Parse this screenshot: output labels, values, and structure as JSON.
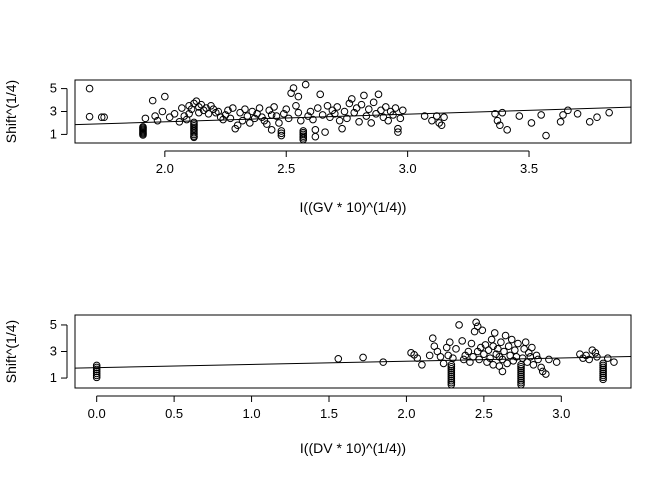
{
  "chart_data": [
    {
      "type": "scatter",
      "title": "",
      "xlabel": "I((GV * 10)^(1/4))",
      "ylabel": "Shift^(1/4)",
      "xlim": [
        1.63,
        3.92
      ],
      "ylim": [
        0.25,
        5.75
      ],
      "xticks": [
        2.0,
        2.5,
        3.0,
        3.5
      ],
      "xtick_labels": [
        "2.0",
        "2.5",
        "3.0",
        "3.5"
      ],
      "yticks": [
        1,
        3,
        5
      ],
      "ytick_labels": [
        "1",
        "3",
        "5"
      ],
      "grid": false,
      "legend": "none",
      "fit_line": {
        "x": [
          1.63,
          3.92
        ],
        "y": [
          1.85,
          3.38
        ]
      },
      "points": [
        [
          1.69,
          5.0
        ],
        [
          1.69,
          2.55
        ],
        [
          1.74,
          2.5
        ],
        [
          1.75,
          2.5
        ],
        [
          1.91,
          0.95
        ],
        [
          1.91,
          1.05
        ],
        [
          1.91,
          1.15
        ],
        [
          1.91,
          1.25
        ],
        [
          1.91,
          1.35
        ],
        [
          1.91,
          1.45
        ],
        [
          1.91,
          1.55
        ],
        [
          1.91,
          1.65
        ],
        [
          1.92,
          2.4
        ],
        [
          1.95,
          3.95
        ],
        [
          1.96,
          2.6
        ],
        [
          1.97,
          2.2
        ],
        [
          1.99,
          3.0
        ],
        [
          2.0,
          4.3
        ],
        [
          2.02,
          2.5
        ],
        [
          2.04,
          2.8
        ],
        [
          2.06,
          2.1
        ],
        [
          2.07,
          3.3
        ],
        [
          2.08,
          2.6
        ],
        [
          2.09,
          2.3
        ],
        [
          2.1,
          3.5
        ],
        [
          2.1,
          2.8
        ],
        [
          2.11,
          3.2
        ],
        [
          2.12,
          3.7
        ],
        [
          2.12,
          0.75
        ],
        [
          2.12,
          0.85
        ],
        [
          2.12,
          1.0
        ],
        [
          2.12,
          1.15
        ],
        [
          2.12,
          1.3
        ],
        [
          2.12,
          1.45
        ],
        [
          2.12,
          1.6
        ],
        [
          2.12,
          1.75
        ],
        [
          2.12,
          1.9
        ],
        [
          2.12,
          2.05
        ],
        [
          2.13,
          3.9
        ],
        [
          2.14,
          3.4
        ],
        [
          2.14,
          2.9
        ],
        [
          2.15,
          3.6
        ],
        [
          2.16,
          3.1
        ],
        [
          2.17,
          3.3
        ],
        [
          2.18,
          2.8
        ],
        [
          2.19,
          3.5
        ],
        [
          2.2,
          3.2
        ],
        [
          2.21,
          2.9
        ],
        [
          2.22,
          3.0
        ],
        [
          2.23,
          2.5
        ],
        [
          2.24,
          2.3
        ],
        [
          2.25,
          2.7
        ],
        [
          2.26,
          3.1
        ],
        [
          2.27,
          2.4
        ],
        [
          2.28,
          3.3
        ],
        [
          2.29,
          1.5
        ],
        [
          2.3,
          1.8
        ],
        [
          2.31,
          2.9
        ],
        [
          2.32,
          2.2
        ],
        [
          2.33,
          3.2
        ],
        [
          2.34,
          2.6
        ],
        [
          2.35,
          2.0
        ],
        [
          2.36,
          3.0
        ],
        [
          2.37,
          2.4
        ],
        [
          2.38,
          2.8
        ],
        [
          2.39,
          3.3
        ],
        [
          2.4,
          2.5
        ],
        [
          2.41,
          2.2
        ],
        [
          2.42,
          1.9
        ],
        [
          2.43,
          3.1
        ],
        [
          2.44,
          2.7
        ],
        [
          2.44,
          1.4
        ],
        [
          2.45,
          3.4
        ],
        [
          2.46,
          2.6
        ],
        [
          2.47,
          2.0
        ],
        [
          2.48,
          0.9
        ],
        [
          2.48,
          1.1
        ],
        [
          2.48,
          1.3
        ],
        [
          2.49,
          2.8
        ],
        [
          2.5,
          3.2
        ],
        [
          2.51,
          2.4
        ],
        [
          2.52,
          4.6
        ],
        [
          2.53,
          5.05
        ],
        [
          2.54,
          3.5
        ],
        [
          2.55,
          2.9
        ],
        [
          2.55,
          4.3
        ],
        [
          2.56,
          2.2
        ],
        [
          2.57,
          0.55
        ],
        [
          2.57,
          0.7
        ],
        [
          2.57,
          0.85
        ],
        [
          2.57,
          1.0
        ],
        [
          2.57,
          1.15
        ],
        [
          2.57,
          1.3
        ],
        [
          2.58,
          5.35
        ],
        [
          2.59,
          2.6
        ],
        [
          2.6,
          3.0
        ],
        [
          2.61,
          2.3
        ],
        [
          2.62,
          0.8
        ],
        [
          2.62,
          1.4
        ],
        [
          2.63,
          3.3
        ],
        [
          2.64,
          4.5
        ],
        [
          2.65,
          2.7
        ],
        [
          2.66,
          1.2
        ],
        [
          2.67,
          3.5
        ],
        [
          2.68,
          2.5
        ],
        [
          2.69,
          3.1
        ],
        [
          2.7,
          2.8
        ],
        [
          2.71,
          3.4
        ],
        [
          2.72,
          2.2
        ],
        [
          2.73,
          1.5
        ],
        [
          2.74,
          3.0
        ],
        [
          2.75,
          2.4
        ],
        [
          2.76,
          3.7
        ],
        [
          2.77,
          4.1
        ],
        [
          2.78,
          2.9
        ],
        [
          2.79,
          3.3
        ],
        [
          2.8,
          2.1
        ],
        [
          2.81,
          3.6
        ],
        [
          2.82,
          4.4
        ],
        [
          2.83,
          2.6
        ],
        [
          2.84,
          3.2
        ],
        [
          2.85,
          2.0
        ],
        [
          2.86,
          3.8
        ],
        [
          2.87,
          2.8
        ],
        [
          2.88,
          4.5
        ],
        [
          2.89,
          3.1
        ],
        [
          2.9,
          2.5
        ],
        [
          2.91,
          3.4
        ],
        [
          2.92,
          2.2
        ],
        [
          2.93,
          3.0
        ],
        [
          2.94,
          2.7
        ],
        [
          2.95,
          3.3
        ],
        [
          2.96,
          1.2
        ],
        [
          2.96,
          1.5
        ],
        [
          2.97,
          2.4
        ],
        [
          2.98,
          3.1
        ],
        [
          3.07,
          2.6
        ],
        [
          3.1,
          2.2
        ],
        [
          3.12,
          2.6
        ],
        [
          3.13,
          2.0
        ],
        [
          3.14,
          1.8
        ],
        [
          3.15,
          2.5
        ],
        [
          3.36,
          2.8
        ],
        [
          3.37,
          2.2
        ],
        [
          3.38,
          1.8
        ],
        [
          3.39,
          2.9
        ],
        [
          3.41,
          1.4
        ],
        [
          3.46,
          2.6
        ],
        [
          3.51,
          2.0
        ],
        [
          3.55,
          2.7
        ],
        [
          3.57,
          0.9
        ],
        [
          3.63,
          2.1
        ],
        [
          3.64,
          2.7
        ],
        [
          3.66,
          3.1
        ],
        [
          3.7,
          2.8
        ],
        [
          3.75,
          2.1
        ],
        [
          3.78,
          2.5
        ],
        [
          3.83,
          2.9
        ]
      ]
    },
    {
      "type": "scatter",
      "title": "",
      "xlabel": "I((DV * 10)^(1/4))",
      "ylabel": "Shift^(1/4)",
      "xlim": [
        -0.14,
        3.45
      ],
      "ylim": [
        0.25,
        5.75
      ],
      "xticks": [
        0.0,
        0.5,
        1.0,
        1.5,
        2.0,
        2.5,
        3.0
      ],
      "xtick_labels": [
        "0.0",
        "0.5",
        "1.0",
        "1.5",
        "2.0",
        "2.5",
        "3.0"
      ],
      "yticks": [
        1,
        3,
        5
      ],
      "ytick_labels": [
        "1",
        "3",
        "5"
      ],
      "grid": false,
      "legend": "none",
      "fit_line": {
        "x": [
          -0.14,
          3.45
        ],
        "y": [
          1.75,
          2.62
        ]
      },
      "points": [
        [
          0.0,
          1.05
        ],
        [
          0.0,
          1.2
        ],
        [
          0.0,
          1.35
        ],
        [
          0.0,
          1.5
        ],
        [
          0.0,
          1.65
        ],
        [
          0.0,
          1.8
        ],
        [
          0.0,
          1.95
        ],
        [
          1.56,
          2.45
        ],
        [
          1.72,
          2.55
        ],
        [
          1.85,
          2.2
        ],
        [
          2.03,
          2.9
        ],
        [
          2.05,
          2.75
        ],
        [
          2.07,
          2.5
        ],
        [
          2.1,
          2.0
        ],
        [
          2.15,
          2.7
        ],
        [
          2.17,
          4.0
        ],
        [
          2.18,
          3.4
        ],
        [
          2.2,
          3.0
        ],
        [
          2.22,
          2.6
        ],
        [
          2.24,
          2.1
        ],
        [
          2.26,
          3.3
        ],
        [
          2.27,
          2.7
        ],
        [
          2.28,
          3.7
        ],
        [
          2.29,
          0.5
        ],
        [
          2.29,
          0.65
        ],
        [
          2.29,
          0.8
        ],
        [
          2.29,
          0.95
        ],
        [
          2.29,
          1.1
        ],
        [
          2.29,
          1.25
        ],
        [
          2.29,
          1.4
        ],
        [
          2.29,
          1.55
        ],
        [
          2.29,
          1.7
        ],
        [
          2.29,
          1.85
        ],
        [
          2.29,
          2.0
        ],
        [
          2.3,
          2.5
        ],
        [
          2.32,
          3.2
        ],
        [
          2.34,
          5.0
        ],
        [
          2.36,
          3.8
        ],
        [
          2.37,
          2.4
        ],
        [
          2.38,
          2.7
        ],
        [
          2.4,
          3.0
        ],
        [
          2.41,
          2.2
        ],
        [
          2.42,
          3.6
        ],
        [
          2.43,
          2.6
        ],
        [
          2.44,
          4.5
        ],
        [
          2.45,
          5.2
        ],
        [
          2.46,
          3.0
        ],
        [
          2.46,
          4.9
        ],
        [
          2.47,
          2.4
        ],
        [
          2.48,
          3.3
        ],
        [
          2.49,
          4.6
        ],
        [
          2.5,
          2.8
        ],
        [
          2.51,
          3.5
        ],
        [
          2.52,
          2.2
        ],
        [
          2.53,
          3.1
        ],
        [
          2.54,
          2.5
        ],
        [
          2.55,
          3.9
        ],
        [
          2.56,
          2.0
        ],
        [
          2.56,
          3.4
        ],
        [
          2.57,
          4.4
        ],
        [
          2.58,
          2.8
        ],
        [
          2.59,
          3.2
        ],
        [
          2.6,
          1.9
        ],
        [
          2.6,
          2.6
        ],
        [
          2.61,
          3.7
        ],
        [
          2.62,
          1.5
        ],
        [
          2.62,
          2.4
        ],
        [
          2.63,
          3.0
        ],
        [
          2.64,
          4.2
        ],
        [
          2.65,
          2.1
        ],
        [
          2.66,
          3.4
        ],
        [
          2.67,
          2.7
        ],
        [
          2.68,
          3.9
        ],
        [
          2.69,
          2.3
        ],
        [
          2.7,
          3.1
        ],
        [
          2.71,
          2.6
        ],
        [
          2.72,
          3.6
        ],
        [
          2.74,
          0.5
        ],
        [
          2.74,
          0.65
        ],
        [
          2.74,
          0.8
        ],
        [
          2.74,
          0.95
        ],
        [
          2.74,
          1.1
        ],
        [
          2.74,
          1.25
        ],
        [
          2.74,
          1.4
        ],
        [
          2.74,
          1.55
        ],
        [
          2.74,
          1.7
        ],
        [
          2.74,
          1.85
        ],
        [
          2.74,
          2.0
        ],
        [
          2.75,
          2.5
        ],
        [
          2.76,
          3.2
        ],
        [
          2.77,
          3.7
        ],
        [
          2.78,
          2.2
        ],
        [
          2.79,
          2.9
        ],
        [
          2.8,
          2.6
        ],
        [
          2.81,
          3.3
        ],
        [
          2.82,
          2.0
        ],
        [
          2.84,
          2.7
        ],
        [
          2.85,
          2.4
        ],
        [
          2.87,
          1.8
        ],
        [
          2.88,
          1.5
        ],
        [
          2.9,
          1.3
        ],
        [
          2.92,
          2.4
        ],
        [
          2.97,
          2.2
        ],
        [
          3.12,
          2.8
        ],
        [
          3.14,
          2.5
        ],
        [
          3.16,
          2.7
        ],
        [
          3.18,
          2.4
        ],
        [
          3.2,
          3.1
        ],
        [
          3.22,
          2.9
        ],
        [
          3.23,
          2.6
        ],
        [
          3.27,
          0.9
        ],
        [
          3.27,
          1.05
        ],
        [
          3.27,
          1.2
        ],
        [
          3.27,
          1.35
        ],
        [
          3.27,
          1.5
        ],
        [
          3.27,
          1.65
        ],
        [
          3.27,
          1.8
        ],
        [
          3.27,
          1.95
        ],
        [
          3.27,
          2.1
        ],
        [
          3.3,
          2.5
        ],
        [
          3.34,
          2.2
        ]
      ]
    }
  ]
}
